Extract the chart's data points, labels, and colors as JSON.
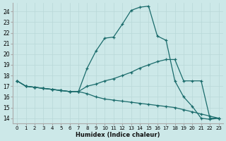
{
  "xlabel": "Humidex (Indice chaleur)",
  "bg_color": "#cce8e8",
  "line_color": "#1a6b6b",
  "grid_color": "#b8d8d8",
  "xlim": [
    -0.5,
    23.5
  ],
  "ylim": [
    13.5,
    24.8
  ],
  "yticks": [
    14,
    15,
    16,
    17,
    18,
    19,
    20,
    21,
    22,
    23,
    24
  ],
  "xticks": [
    0,
    1,
    2,
    3,
    4,
    5,
    6,
    7,
    8,
    9,
    10,
    11,
    12,
    13,
    14,
    15,
    16,
    17,
    18,
    19,
    20,
    21,
    22,
    23
  ],
  "line1_x": [
    0,
    1,
    2,
    3,
    4,
    5,
    6,
    7,
    8,
    9,
    10,
    11,
    12,
    13,
    14,
    15,
    16,
    17,
    18,
    19,
    20,
    21,
    22,
    23
  ],
  "line1_y": [
    17.5,
    17.0,
    16.9,
    16.8,
    16.7,
    16.6,
    16.5,
    16.5,
    18.7,
    20.3,
    21.5,
    21.6,
    22.8,
    24.1,
    24.4,
    24.5,
    21.7,
    21.3,
    17.5,
    16.0,
    15.1,
    14.0,
    13.9,
    14.0
  ],
  "line2_x": [
    0,
    1,
    2,
    3,
    4,
    5,
    6,
    7,
    8,
    9,
    10,
    11,
    12,
    13,
    14,
    15,
    16,
    17,
    18,
    19,
    20,
    21,
    22,
    23
  ],
  "line2_y": [
    17.5,
    17.0,
    16.9,
    16.8,
    16.7,
    16.6,
    16.5,
    16.5,
    17.0,
    17.2,
    17.5,
    17.7,
    18.0,
    18.3,
    18.7,
    19.0,
    19.3,
    19.5,
    19.5,
    17.5,
    17.5,
    17.5,
    14.0,
    14.0
  ],
  "line3_x": [
    0,
    1,
    2,
    3,
    4,
    5,
    6,
    7,
    8,
    9,
    10,
    11,
    12,
    13,
    14,
    15,
    16,
    17,
    18,
    19,
    20,
    21,
    22,
    23
  ],
  "line3_y": [
    17.5,
    17.0,
    16.9,
    16.8,
    16.7,
    16.6,
    16.5,
    16.5,
    16.3,
    16.0,
    15.8,
    15.7,
    15.6,
    15.5,
    15.4,
    15.3,
    15.2,
    15.1,
    15.0,
    14.8,
    14.6,
    14.4,
    14.2,
    14.0
  ]
}
